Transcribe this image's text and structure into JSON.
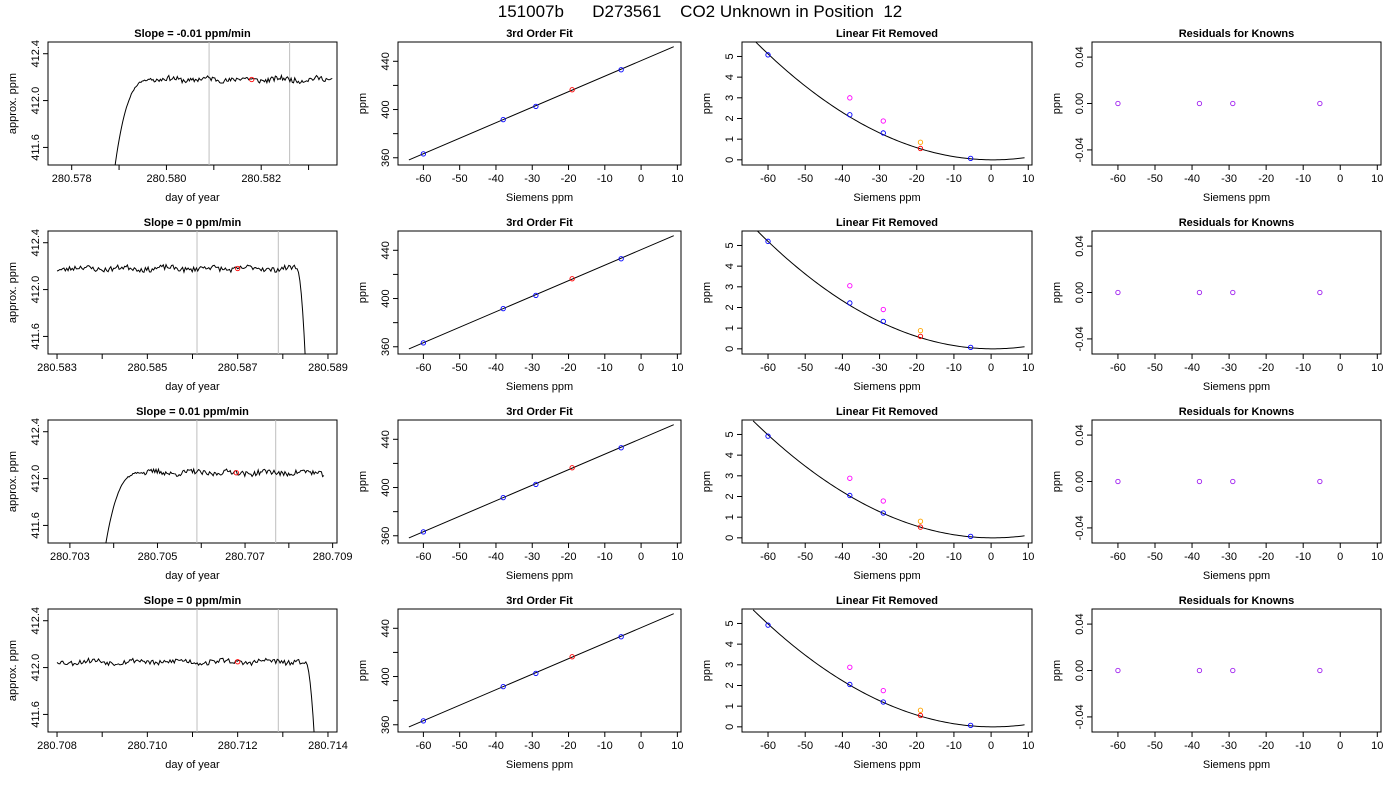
{
  "page": {
    "title": "151007b      D273561    CO2 Unknown in Position  12"
  },
  "colors": {
    "axes": "#000000",
    "trace": "#000000",
    "vline": "#bebebe",
    "known_point": "#0000ff",
    "unknown_point": "#ff0000",
    "raw_point_magenta": "#ff00ff",
    "raw_point_orange": "#ffa500",
    "residual_point": "#a020f0"
  },
  "chart_data": [
    {
      "type": "line",
      "title": "Slope =  -0.01  ppm/min",
      "xlabel": "day of year",
      "ylabel": "approx. ppm",
      "xlim": [
        280.5775,
        280.5836
      ],
      "ylim": [
        411.45,
        412.5
      ],
      "xticks": [
        280.578,
        280.579,
        280.58,
        280.581,
        280.582,
        280.583
      ],
      "xtick_labels": [
        "280.578",
        "",
        "280.580",
        "",
        "280.582",
        ""
      ],
      "yticks": [
        411.6,
        412.0,
        412.4
      ],
      "ytick_labels": [
        "411.6",
        "412.0",
        "412.4"
      ],
      "vlines": [
        280.5809,
        280.5826
      ],
      "trace": {
        "x0": 280.5789,
        "x1": 280.5835,
        "start": 411.4,
        "level": 412.18,
        "rise": "start",
        "end_drop": null,
        "seed": 11
      },
      "marker": {
        "x": 280.5818,
        "y": 412.18
      }
    },
    {
      "type": "scatter",
      "title": "3rd Order Fit",
      "xlabel": "Siemens ppm",
      "ylabel": "ppm",
      "xlim": [
        -67,
        11
      ],
      "ylim": [
        354,
        456
      ],
      "xticks": [
        -60,
        -50,
        -40,
        -30,
        -20,
        -10,
        0,
        10
      ],
      "yticks": [
        360,
        380,
        400,
        420,
        440
      ],
      "ytick_labels": [
        "360",
        "",
        "400",
        "",
        "440"
      ],
      "fit_line": {
        "x": [
          -64,
          9
        ],
        "y": [
          358.2,
          452.1
        ]
      },
      "knowns": [
        {
          "x": -60,
          "y": 363.2
        },
        {
          "x": -38,
          "y": 391.6
        },
        {
          "x": -29,
          "y": 402.6
        },
        {
          "x": -5.5,
          "y": 433.0
        }
      ],
      "unknown": {
        "x": -19,
        "y": 416.4
      }
    },
    {
      "type": "scatter",
      "title": "Linear Fit Removed",
      "xlabel": "Siemens ppm",
      "ylabel": "ppm",
      "xlim": [
        -67,
        11
      ],
      "ylim": [
        -0.25,
        5.7
      ],
      "xticks": [
        -60,
        -50,
        -40,
        -30,
        -20,
        -10,
        0,
        10
      ],
      "yticks": [
        0,
        1,
        2,
        3,
        4,
        5
      ],
      "curve": {
        "a": 0.0014,
        "vertex": 0.5,
        "offset": 0.0
      },
      "knowns": [
        {
          "x": -60,
          "y": 5.08
        },
        {
          "x": -38,
          "y": 2.18
        },
        {
          "x": -29,
          "y": 1.3
        },
        {
          "x": -5.5,
          "y": 0.07
        }
      ],
      "knowns_raw": [
        {
          "x": -38,
          "y": 3.0
        },
        {
          "x": -29,
          "y": 1.88
        }
      ],
      "unknown": {
        "x": -19,
        "y": 0.55
      },
      "unknown_raw": {
        "x": -19,
        "y": 0.85
      }
    },
    {
      "type": "scatter",
      "title": "Residuals for Knowns",
      "xlabel": "Siemens ppm",
      "ylabel": "ppm",
      "xlim": [
        -67,
        11
      ],
      "ylim": [
        -0.053,
        0.053
      ],
      "xticks": [
        -60,
        -50,
        -40,
        -30,
        -20,
        -10,
        0,
        10
      ],
      "yticks": [
        -0.04,
        0.0,
        0.04
      ],
      "ytick_labels": [
        "-0.04",
        "0.00",
        "0.04"
      ],
      "points": [
        {
          "x": -60,
          "y": 0
        },
        {
          "x": -38,
          "y": 0
        },
        {
          "x": -29,
          "y": 0
        },
        {
          "x": -5.5,
          "y": 0
        }
      ]
    },
    {
      "type": "line",
      "title": "Slope =  0  ppm/min",
      "xlabel": "day of year",
      "ylabel": "approx. ppm",
      "xlim": [
        280.5828,
        280.5892
      ],
      "ylim": [
        411.45,
        412.5
      ],
      "xticks": [
        280.583,
        280.584,
        280.585,
        280.586,
        280.587,
        280.588,
        280.589
      ],
      "xtick_labels": [
        "280.583",
        "",
        "280.585",
        "",
        "280.587",
        "",
        "280.589"
      ],
      "yticks": [
        411.6,
        412.0,
        412.4
      ],
      "ytick_labels": [
        "411.6",
        "412.0",
        "412.4"
      ],
      "vlines": [
        280.5861,
        280.5879
      ],
      "trace": {
        "x0": 280.583,
        "x1": 280.5885,
        "start": 412.18,
        "level": 412.18,
        "rise": null,
        "end_drop": 411.4,
        "seed": 23
      },
      "marker": {
        "x": 280.587,
        "y": 412.18
      }
    },
    {
      "type": "scatter",
      "title": "3rd Order Fit",
      "xlabel": "Siemens ppm",
      "ylabel": "ppm",
      "xlim": [
        -67,
        11
      ],
      "ylim": [
        354,
        456
      ],
      "xticks": [
        -60,
        -50,
        -40,
        -30,
        -20,
        -10,
        0,
        10
      ],
      "yticks": [
        360,
        380,
        400,
        420,
        440
      ],
      "ytick_labels": [
        "360",
        "",
        "400",
        "",
        "440"
      ],
      "fit_line": {
        "x": [
          -64,
          9
        ],
        "y": [
          358.2,
          452.1
        ]
      },
      "knowns": [
        {
          "x": -60,
          "y": 363.2
        },
        {
          "x": -38,
          "y": 391.6
        },
        {
          "x": -29,
          "y": 402.6
        },
        {
          "x": -5.5,
          "y": 433.0
        }
      ],
      "unknown": {
        "x": -19,
        "y": 416.4
      }
    },
    {
      "type": "scatter",
      "title": "Linear Fit Removed",
      "xlabel": "Siemens ppm",
      "ylabel": "ppm",
      "xlim": [
        -67,
        11
      ],
      "ylim": [
        -0.25,
        5.7
      ],
      "xticks": [
        -60,
        -50,
        -40,
        -30,
        -20,
        -10,
        0,
        10
      ],
      "yticks": [
        0,
        1,
        2,
        3,
        4,
        5
      ],
      "curve": {
        "a": 0.00142,
        "vertex": 0.5,
        "offset": 0.0
      },
      "knowns": [
        {
          "x": -60,
          "y": 5.2
        },
        {
          "x": -38,
          "y": 2.22
        },
        {
          "x": -29,
          "y": 1.33
        },
        {
          "x": -5.5,
          "y": 0.07
        }
      ],
      "knowns_raw": [
        {
          "x": -38,
          "y": 3.05
        },
        {
          "x": -29,
          "y": 1.9
        }
      ],
      "unknown": {
        "x": -19,
        "y": 0.6
      },
      "unknown_raw": {
        "x": -19,
        "y": 0.88
      }
    },
    {
      "type": "scatter",
      "title": "Residuals for Knowns",
      "xlabel": "Siemens ppm",
      "ylabel": "ppm",
      "xlim": [
        -67,
        11
      ],
      "ylim": [
        -0.053,
        0.053
      ],
      "xticks": [
        -60,
        -50,
        -40,
        -30,
        -20,
        -10,
        0,
        10
      ],
      "yticks": [
        -0.04,
        0.0,
        0.04
      ],
      "ytick_labels": [
        "-0.04",
        "0.00",
        "0.04"
      ],
      "points": [
        {
          "x": -60,
          "y": 0
        },
        {
          "x": -38,
          "y": 0
        },
        {
          "x": -29,
          "y": 0
        },
        {
          "x": -5.5,
          "y": 0
        }
      ]
    },
    {
      "type": "line",
      "title": "Slope =  0.01  ppm/min",
      "xlabel": "day of year",
      "ylabel": "approx. ppm",
      "xlim": [
        280.7025,
        280.7091
      ],
      "ylim": [
        411.45,
        412.5
      ],
      "xticks": [
        280.703,
        280.704,
        280.705,
        280.706,
        280.707,
        280.708,
        280.709
      ],
      "xtick_labels": [
        "280.703",
        "",
        "280.705",
        "",
        "280.707",
        "",
        "280.709"
      ],
      "yticks": [
        411.6,
        412.0,
        412.4
      ],
      "ytick_labels": [
        "411.6",
        "412.0",
        "412.4"
      ],
      "vlines": [
        280.7059,
        280.7077
      ],
      "trace": {
        "x0": 280.7038,
        "x1": 280.7088,
        "start": 411.4,
        "level": 412.05,
        "rise": "start",
        "end_drop": null,
        "seed": 37
      },
      "marker": {
        "x": 280.7068,
        "y": 412.05
      }
    },
    {
      "type": "scatter",
      "title": "3rd Order Fit",
      "xlabel": "Siemens ppm",
      "ylabel": "ppm",
      "xlim": [
        -67,
        11
      ],
      "ylim": [
        354,
        456
      ],
      "xticks": [
        -60,
        -50,
        -40,
        -30,
        -20,
        -10,
        0,
        10
      ],
      "yticks": [
        360,
        380,
        400,
        420,
        440
      ],
      "ytick_labels": [
        "360",
        "",
        "400",
        "",
        "440"
      ],
      "fit_line": {
        "x": [
          -64,
          9
        ],
        "y": [
          358.2,
          452.1
        ]
      },
      "knowns": [
        {
          "x": -60,
          "y": 363.2
        },
        {
          "x": -38,
          "y": 391.6
        },
        {
          "x": -29,
          "y": 402.6
        },
        {
          "x": -5.5,
          "y": 433.0
        }
      ],
      "unknown": {
        "x": -19,
        "y": 416.4
      }
    },
    {
      "type": "scatter",
      "title": "Linear Fit Removed",
      "xlabel": "Siemens ppm",
      "ylabel": "ppm",
      "xlim": [
        -67,
        11
      ],
      "ylim": [
        -0.25,
        5.7
      ],
      "xticks": [
        -60,
        -50,
        -40,
        -30,
        -20,
        -10,
        0,
        10
      ],
      "yticks": [
        0,
        1,
        2,
        3,
        4,
        5
      ],
      "curve": {
        "a": 0.00136,
        "vertex": 0.5,
        "offset": 0.0
      },
      "knowns": [
        {
          "x": -60,
          "y": 4.92
        },
        {
          "x": -38,
          "y": 2.05
        },
        {
          "x": -29,
          "y": 1.2
        },
        {
          "x": -5.5,
          "y": 0.07
        }
      ],
      "knowns_raw": [
        {
          "x": -38,
          "y": 2.88
        },
        {
          "x": -29,
          "y": 1.78
        }
      ],
      "unknown": {
        "x": -19,
        "y": 0.52
      },
      "unknown_raw": {
        "x": -19,
        "y": 0.8
      }
    },
    {
      "type": "scatter",
      "title": "Residuals for Knowns",
      "xlabel": "Siemens ppm",
      "ylabel": "ppm",
      "xlim": [
        -67,
        11
      ],
      "ylim": [
        -0.053,
        0.053
      ],
      "xticks": [
        -60,
        -50,
        -40,
        -30,
        -20,
        -10,
        0,
        10
      ],
      "yticks": [
        -0.04,
        0.0,
        0.04
      ],
      "ytick_labels": [
        "-0.04",
        "0.00",
        "0.04"
      ],
      "points": [
        {
          "x": -60,
          "y": 0
        },
        {
          "x": -38,
          "y": 0
        },
        {
          "x": -29,
          "y": 0
        },
        {
          "x": -5.5,
          "y": 0
        }
      ]
    },
    {
      "type": "line",
      "title": "Slope =  0  ppm/min",
      "xlabel": "day of year",
      "ylabel": "approx. ppm",
      "xlim": [
        280.7078,
        280.7142
      ],
      "ylim": [
        411.45,
        412.5
      ],
      "xticks": [
        280.708,
        280.709,
        280.71,
        280.711,
        280.712,
        280.713,
        280.714
      ],
      "xtick_labels": [
        "280.708",
        "",
        "280.710",
        "",
        "280.712",
        "",
        "280.714"
      ],
      "yticks": [
        411.6,
        412.0,
        412.4
      ],
      "ytick_labels": [
        "411.6",
        "412.0",
        "412.4"
      ],
      "vlines": [
        280.7111,
        280.7129
      ],
      "trace": {
        "x0": 280.708,
        "x1": 280.7137,
        "start": 412.05,
        "level": 412.05,
        "rise": null,
        "end_drop": 411.4,
        "seed": 53
      },
      "marker": {
        "x": 280.712,
        "y": 412.05
      }
    },
    {
      "type": "scatter",
      "title": "3rd Order Fit",
      "xlabel": "Siemens ppm",
      "ylabel": "ppm",
      "xlim": [
        -67,
        11
      ],
      "ylim": [
        354,
        456
      ],
      "xticks": [
        -60,
        -50,
        -40,
        -30,
        -20,
        -10,
        0,
        10
      ],
      "yticks": [
        360,
        380,
        400,
        420,
        440
      ],
      "ytick_labels": [
        "360",
        "",
        "400",
        "",
        "440"
      ],
      "fit_line": {
        "x": [
          -64,
          9
        ],
        "y": [
          358.2,
          452.1
        ]
      },
      "knowns": [
        {
          "x": -60,
          "y": 363.2
        },
        {
          "x": -38,
          "y": 391.6
        },
        {
          "x": -29,
          "y": 402.6
        },
        {
          "x": -5.5,
          "y": 433.0
        }
      ],
      "unknown": {
        "x": -19,
        "y": 416.4
      }
    },
    {
      "type": "scatter",
      "title": "Linear Fit Removed",
      "xlabel": "Siemens ppm",
      "ylabel": "ppm",
      "xlim": [
        -67,
        11
      ],
      "ylim": [
        -0.25,
        5.7
      ],
      "xticks": [
        -60,
        -50,
        -40,
        -30,
        -20,
        -10,
        0,
        10
      ],
      "yticks": [
        0,
        1,
        2,
        3,
        4,
        5
      ],
      "curve": {
        "a": 0.00136,
        "vertex": 0.5,
        "offset": 0.0
      },
      "knowns": [
        {
          "x": -60,
          "y": 4.92
        },
        {
          "x": -38,
          "y": 2.05
        },
        {
          "x": -29,
          "y": 1.2
        },
        {
          "x": -5.5,
          "y": 0.07
        }
      ],
      "knowns_raw": [
        {
          "x": -38,
          "y": 2.88
        },
        {
          "x": -29,
          "y": 1.75
        }
      ],
      "unknown": {
        "x": -19,
        "y": 0.55
      },
      "unknown_raw": {
        "x": -19,
        "y": 0.8
      }
    },
    {
      "type": "scatter",
      "title": "Residuals for Knowns",
      "xlabel": "Siemens ppm",
      "ylabel": "ppm",
      "xlim": [
        -67,
        11
      ],
      "ylim": [
        -0.053,
        0.053
      ],
      "xticks": [
        -60,
        -50,
        -40,
        -30,
        -20,
        -10,
        0,
        10
      ],
      "yticks": [
        -0.04,
        0.0,
        0.04
      ],
      "ytick_labels": [
        "-0.04",
        "0.00",
        "0.04"
      ],
      "points": [
        {
          "x": -60,
          "y": 0
        },
        {
          "x": -38,
          "y": 0
        },
        {
          "x": -29,
          "y": 0
        },
        {
          "x": -5.5,
          "y": 0
        }
      ]
    }
  ]
}
